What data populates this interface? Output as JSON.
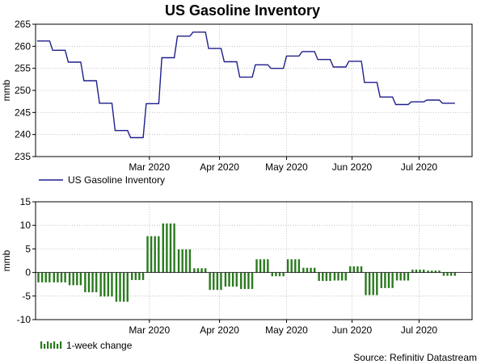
{
  "title": "US Gasoline Inventory",
  "source": "Source: Refinitiv Datastream",
  "colors": {
    "line": "#1f1f8c",
    "bar": "#2a7a1e"
  },
  "chart_data": [
    {
      "type": "line",
      "ylabel": "mmb",
      "ylim": [
        235,
        265
      ],
      "yticks": [
        235,
        240,
        245,
        250,
        255,
        260,
        265
      ],
      "xlim": [
        0,
        28
      ],
      "xticks": [
        {
          "label": "Mar 2020",
          "pos": 7.3
        },
        {
          "label": "Apr 2020",
          "pos": 11.8
        },
        {
          "label": "May 2020",
          "pos": 16.1
        },
        {
          "label": "Jun 2020",
          "pos": 20.3
        },
        {
          "label": "Jul 2020",
          "pos": 24.6
        }
      ],
      "legend": "US Gasoline Inventory",
      "series": [
        {
          "name": "US Gasoline Inventory",
          "values": [
            261.2,
            259.1,
            256.4,
            252.2,
            247.1,
            240.9,
            239.3,
            247.0,
            257.4,
            262.3,
            263.2,
            259.5,
            256.5,
            253.0,
            255.8,
            255.0,
            257.8,
            258.8,
            257.0,
            255.3,
            256.6,
            251.8,
            248.5,
            246.8,
            247.4,
            247.8,
            247.1
          ]
        }
      ]
    },
    {
      "type": "bar",
      "ylabel": "mmb",
      "ylim": [
        -10,
        15
      ],
      "yticks": [
        -10,
        -5,
        0,
        5,
        10,
        15
      ],
      "xlim": [
        0,
        28
      ],
      "xticks": [
        {
          "label": "Mar 2020",
          "pos": 7.3
        },
        {
          "label": "Apr 2020",
          "pos": 11.8
        },
        {
          "label": "May 2020",
          "pos": 16.1
        },
        {
          "label": "Jun 2020",
          "pos": 20.3
        },
        {
          "label": "Jul 2020",
          "pos": 24.6
        }
      ],
      "legend": "1-week change",
      "series": [
        {
          "name": "1-week change",
          "values": [
            -2.1,
            -2.1,
            -2.7,
            -4.2,
            -5.1,
            -6.2,
            -1.6,
            7.7,
            10.4,
            4.9,
            0.9,
            -3.7,
            -3.0,
            -3.5,
            2.8,
            -0.8,
            2.8,
            1.0,
            -1.8,
            -1.7,
            1.3,
            -4.8,
            -3.3,
            -1.7,
            0.6,
            0.4,
            -0.7
          ]
        }
      ]
    }
  ]
}
